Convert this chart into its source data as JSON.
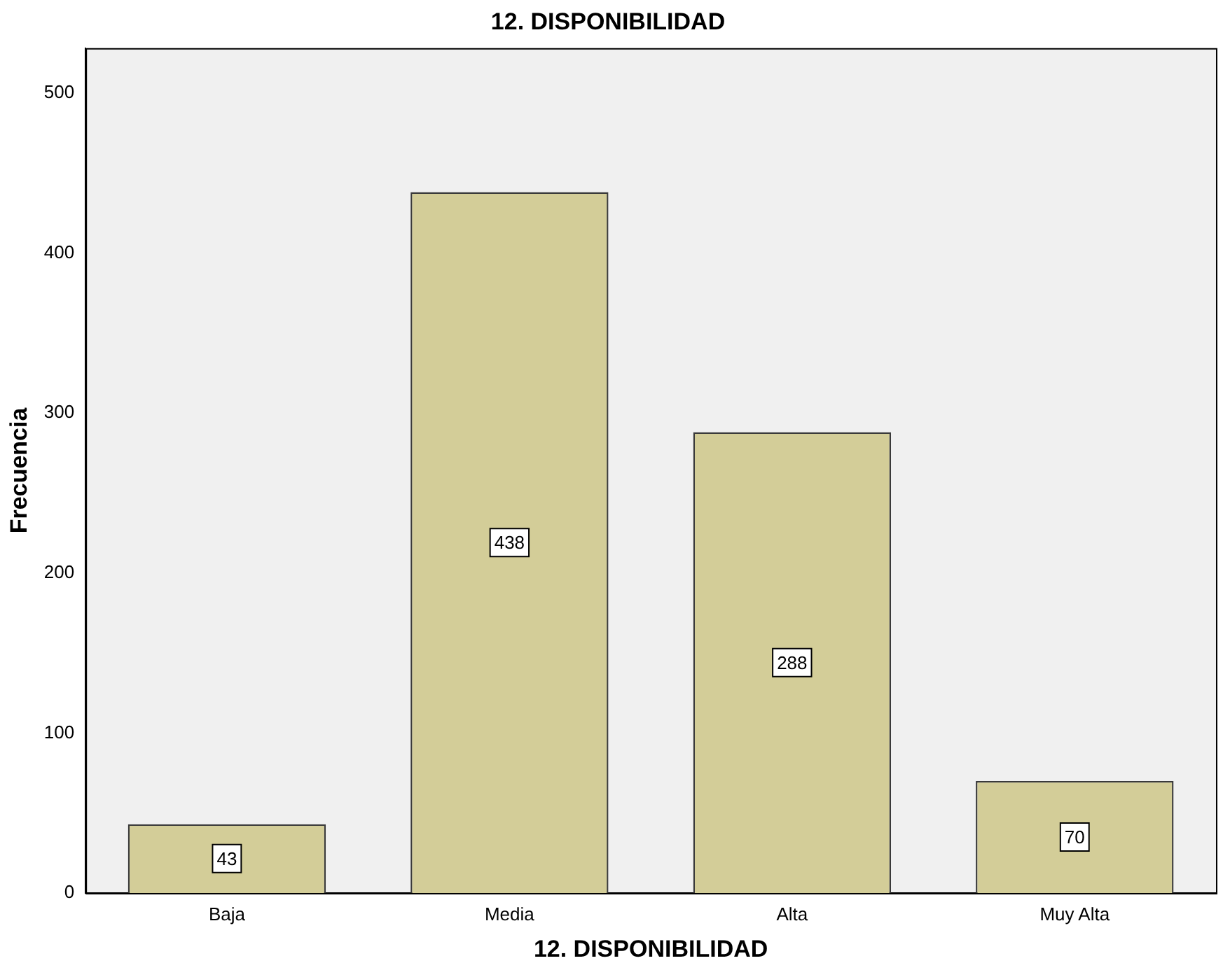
{
  "chart_data": {
    "type": "bar",
    "title": "12. DISPONIBILIDAD",
    "xlabel": "12. DISPONIBILIDAD",
    "ylabel": "Frecuencia",
    "categories": [
      "Baja",
      "Media",
      "Alta",
      "Muy Alta"
    ],
    "values": [
      43,
      438,
      288,
      70
    ],
    "color": "#d3cd98",
    "ylim": [
      0,
      528
    ],
    "yticks": [
      0,
      100,
      200,
      300,
      400,
      500
    ],
    "grid": false,
    "legend": false,
    "data_labels": true
  }
}
